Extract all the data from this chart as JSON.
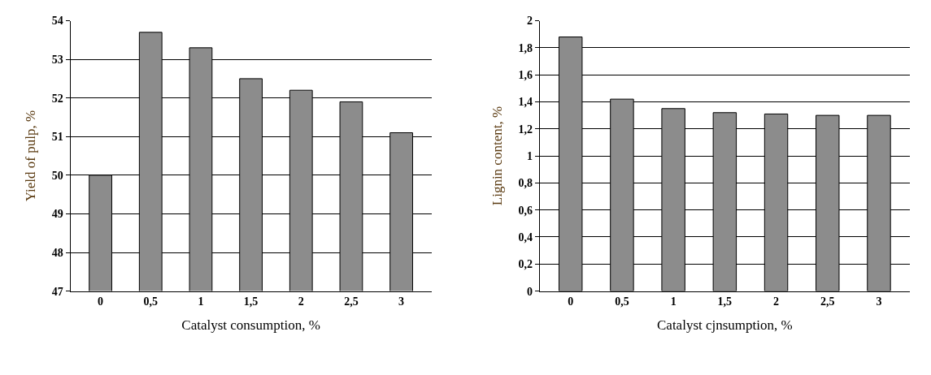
{
  "chart_data": [
    {
      "type": "bar",
      "xlabel": "Catalyst consumption, %",
      "ylabel": "Yield of pulp, %",
      "categories": [
        "0",
        "0,5",
        "1",
        "1,5",
        "2",
        "2,5",
        "3"
      ],
      "values": [
        50.0,
        53.7,
        53.3,
        52.5,
        52.2,
        51.9,
        51.1
      ],
      "color": "#8c8c8c",
      "ylim": [
        47,
        54
      ],
      "yticks": [
        47,
        48,
        49,
        50,
        51,
        52,
        53,
        54
      ],
      "grid": "y"
    },
    {
      "type": "bar",
      "xlabel": "Catalyst cjnsumption, %",
      "ylabel": "Lignin content, %",
      "categories": [
        "0",
        "0,5",
        "1",
        "1,5",
        "2",
        "2,5",
        "3"
      ],
      "values": [
        1.88,
        1.42,
        1.35,
        1.32,
        1.31,
        1.3,
        1.3
      ],
      "color": "#8c8c8c",
      "ylim": [
        0,
        2
      ],
      "yticks": [
        0,
        {
          "value": 0.2,
          "label": "0,2"
        },
        {
          "value": 0.4,
          "label": "0,4"
        },
        {
          "value": 0.6,
          "label": "0,6"
        },
        {
          "value": 0.8,
          "label": "0,8"
        },
        1,
        {
          "value": 1.2,
          "label": "1,2"
        },
        {
          "value": 1.4,
          "label": "1,4"
        },
        {
          "value": 1.6,
          "label": "1,6"
        },
        {
          "value": 1.8,
          "label": "1,8"
        },
        2
      ],
      "grid": "y"
    }
  ]
}
